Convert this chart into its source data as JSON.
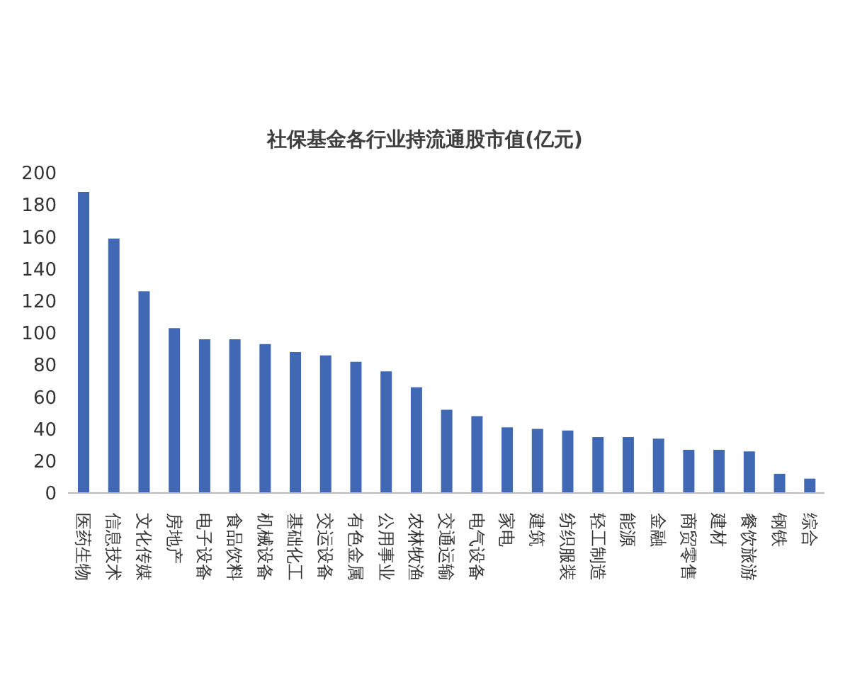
{
  "chart_data": {
    "type": "bar",
    "title": "社保基金各行业持流通股市值(亿元)",
    "categories": [
      "医药生物",
      "信息技术",
      "文化传媒",
      "房地产",
      "电子设备",
      "食品饮料",
      "机械设备",
      "基础化工",
      "交运设备",
      "有色金属",
      "公用事业",
      "农林牧渔",
      "交通运输",
      "电气设备",
      "家电",
      "建筑",
      "纺织服装",
      "轻工制造",
      "能源",
      "金融",
      "商贸零售",
      "建材",
      "餐饮旅游",
      "钢铁",
      "综合"
    ],
    "values": [
      188,
      159,
      126,
      103,
      96,
      96,
      93,
      88,
      86,
      82,
      76,
      66,
      52,
      48,
      41,
      40,
      39,
      35,
      35,
      34,
      27,
      27,
      26,
      12,
      9
    ],
    "color": "#4068b4",
    "ylim": [
      0,
      200
    ],
    "yticks": [
      0,
      20,
      40,
      60,
      80,
      100,
      120,
      140,
      160,
      180,
      200
    ],
    "grid": false
  }
}
